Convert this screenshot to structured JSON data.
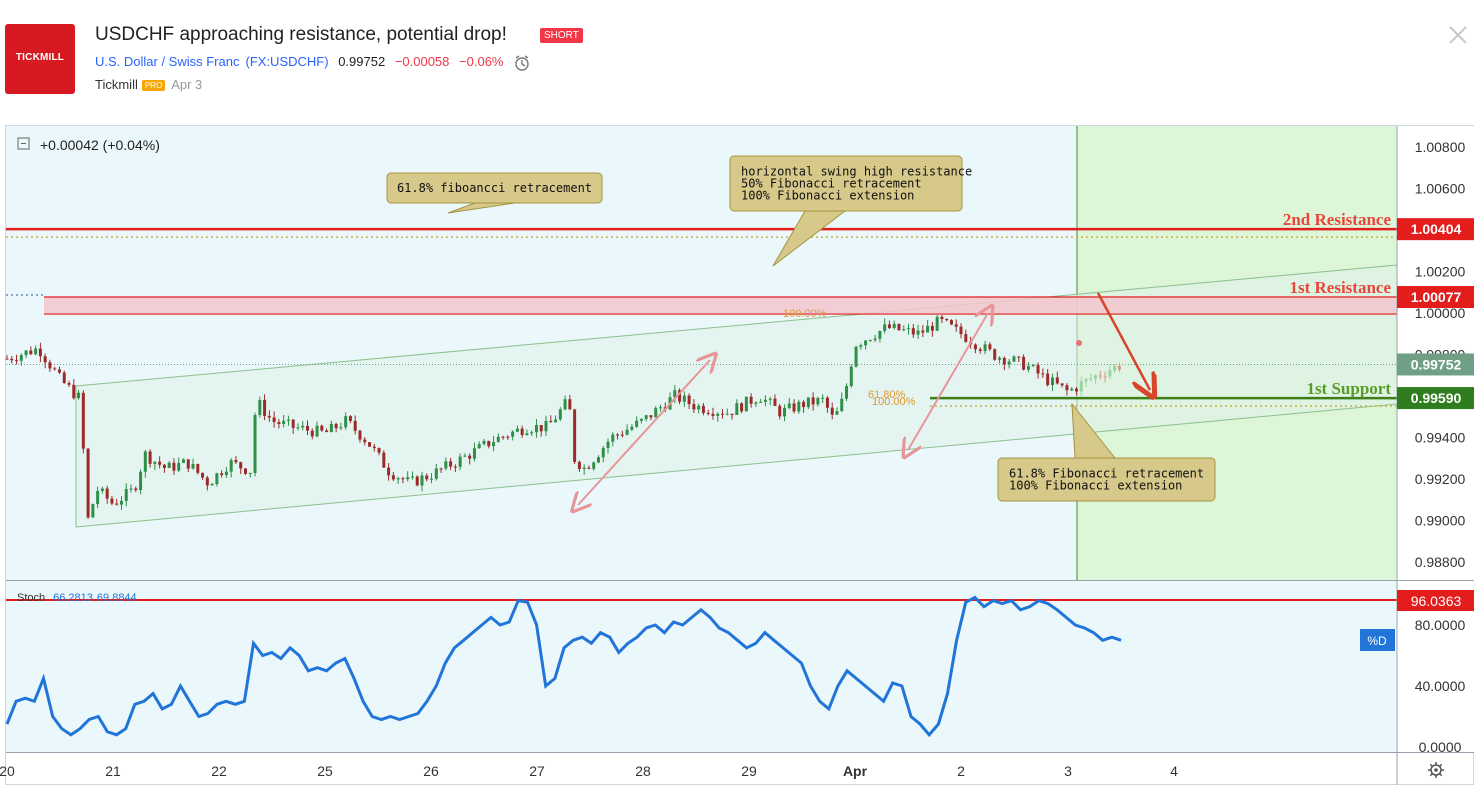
{
  "header": {
    "logo_text": "TICKMILL",
    "title": "USDCHF approaching resistance, potential drop!",
    "badge": "SHORT",
    "symbol_name": "U.S. Dollar / Swiss Franc",
    "symbol_code": "FX:USDCHF",
    "price": "0.99752",
    "change": "−0.00058",
    "change_pct": "−0.06%",
    "author": "Tickmill",
    "author_badge": "PRO",
    "date": "Apr 3"
  },
  "chart_data": [
    {
      "type": "candlestick",
      "title": "",
      "change_label": "+0.00042 (+0.04%)",
      "y_ticks": [
        "1.00800",
        "1.00600",
        "1.00400",
        "1.00200",
        "1.00000",
        "0.99800",
        "0.99600",
        "0.99400",
        "0.99200",
        "0.99000",
        "0.98800"
      ],
      "ylim": [
        0.9872,
        1.0092
      ],
      "x_ticks": [
        "20",
        "21",
        "22",
        "25",
        "26",
        "27",
        "28",
        "29",
        "Apr",
        "2",
        "3",
        "4"
      ],
      "price_tags": [
        {
          "value": "1.00404",
          "color": "#e31c1c"
        },
        {
          "value": "1.00077",
          "color": "#e31c1c"
        },
        {
          "value": "0.99752",
          "color": "#6fa085"
        },
        {
          "value": "0.99590",
          "color": "#2f7d1f"
        }
      ],
      "levels": [
        {
          "label": "2nd Resistance",
          "value": 1.00404,
          "color": "#e8463a"
        },
        {
          "label": "1st Resistance",
          "value": 1.00077,
          "color": "#e8463a"
        },
        {
          "label": "1st Support",
          "value": 0.9959,
          "color": "#5b9b2b"
        }
      ],
      "resistance_zone": [
        0.99995,
        1.00077
      ],
      "fib_labels": [
        "100.00%",
        "61.80%",
        "100.00%"
      ],
      "callouts": [
        {
          "lines": [
            "61.8% fiboancci retracement"
          ]
        },
        {
          "lines": [
            "horizontal swing high resistance",
            "50% Fibonacci retracement",
            "100% Fibonacci extension"
          ]
        },
        {
          "lines": [
            "61.8% Fibonacci retracement",
            "100% Fibonacci extension"
          ]
        }
      ],
      "price_path": [
        [
          0.0,
          0.9978
        ],
        [
          0.3,
          0.9983
        ],
        [
          0.5,
          0.9968
        ],
        [
          0.7,
          0.9958
        ],
        [
          0.75,
          0.9898
        ],
        [
          0.85,
          0.9915
        ],
        [
          1.0,
          0.9908
        ],
        [
          1.2,
          0.9915
        ],
        [
          1.3,
          0.9932
        ],
        [
          1.5,
          0.9925
        ],
        [
          1.7,
          0.9928
        ],
        [
          1.9,
          0.9918
        ],
        [
          2.1,
          0.9928
        ],
        [
          2.3,
          0.9924
        ],
        [
          2.35,
          0.9958
        ],
        [
          2.5,
          0.9948
        ],
        [
          2.7,
          0.9945
        ],
        [
          3.0,
          0.9942
        ],
        [
          3.2,
          0.9948
        ],
        [
          3.4,
          0.9938
        ],
        [
          3.6,
          0.9924
        ],
        [
          3.8,
          0.9918
        ],
        [
          4.0,
          0.9922
        ],
        [
          4.3,
          0.993
        ],
        [
          4.6,
          0.9939
        ],
        [
          4.9,
          0.9945
        ],
        [
          5.1,
          0.9945
        ],
        [
          5.3,
          0.9958
        ],
        [
          5.35,
          0.993
        ],
        [
          5.45,
          0.9925
        ],
        [
          5.7,
          0.994
        ],
        [
          6.0,
          0.9948
        ],
        [
          6.3,
          0.996
        ],
        [
          6.5,
          0.9955
        ],
        [
          6.8,
          0.9952
        ],
        [
          7.1,
          0.996
        ],
        [
          7.3,
          0.9952
        ],
        [
          7.5,
          0.9956
        ],
        [
          7.7,
          0.9958
        ],
        [
          7.8,
          0.9948
        ],
        [
          7.9,
          0.996
        ],
        [
          8.0,
          0.9985
        ],
        [
          8.3,
          0.9993
        ],
        [
          8.6,
          0.999
        ],
        [
          8.8,
          0.9996
        ],
        [
          9.0,
          0.999
        ],
        [
          9.3,
          0.998
        ],
        [
          9.6,
          0.9975
        ],
        [
          9.8,
          0.9968
        ],
        [
          10.0,
          0.9962
        ],
        [
          10.2,
          0.9968
        ],
        [
          10.4,
          0.9973
        ],
        [
          10.5,
          0.9975
        ]
      ]
    },
    {
      "type": "line",
      "title": "",
      "indicator_label": "Stoch",
      "indicator_values": [
        "66.2813",
        "69.8844"
      ],
      "y_ticks": [
        "80.0000",
        "40.0000",
        "0.0000"
      ],
      "ylim": [
        -3,
        105
      ],
      "price_tag": "96.0363",
      "legend_button": "%D",
      "values": [
        15,
        30,
        32,
        30,
        45,
        20,
        12,
        8,
        12,
        18,
        20,
        10,
        8,
        12,
        28,
        30,
        35,
        25,
        28,
        40,
        30,
        20,
        22,
        28,
        30,
        28,
        30,
        68,
        60,
        62,
        58,
        65,
        60,
        50,
        52,
        50,
        55,
        58,
        45,
        30,
        20,
        18,
        20,
        18,
        20,
        22,
        30,
        40,
        55,
        65,
        70,
        75,
        80,
        85,
        80,
        82,
        96,
        95,
        80,
        40,
        45,
        65,
        70,
        72,
        68,
        75,
        72,
        62,
        68,
        72,
        78,
        80,
        75,
        82,
        80,
        85,
        90,
        85,
        78,
        75,
        70,
        65,
        68,
        75,
        70,
        65,
        60,
        55,
        40,
        30,
        25,
        40,
        50,
        45,
        40,
        35,
        30,
        42,
        40,
        20,
        15,
        8,
        15,
        35,
        70,
        95,
        98,
        92,
        96,
        94,
        96,
        90,
        92,
        96,
        94,
        90,
        85,
        80,
        78,
        75,
        70,
        72,
        70
      ]
    }
  ],
  "footer": {
    "settings_icon": "gear-icon"
  }
}
